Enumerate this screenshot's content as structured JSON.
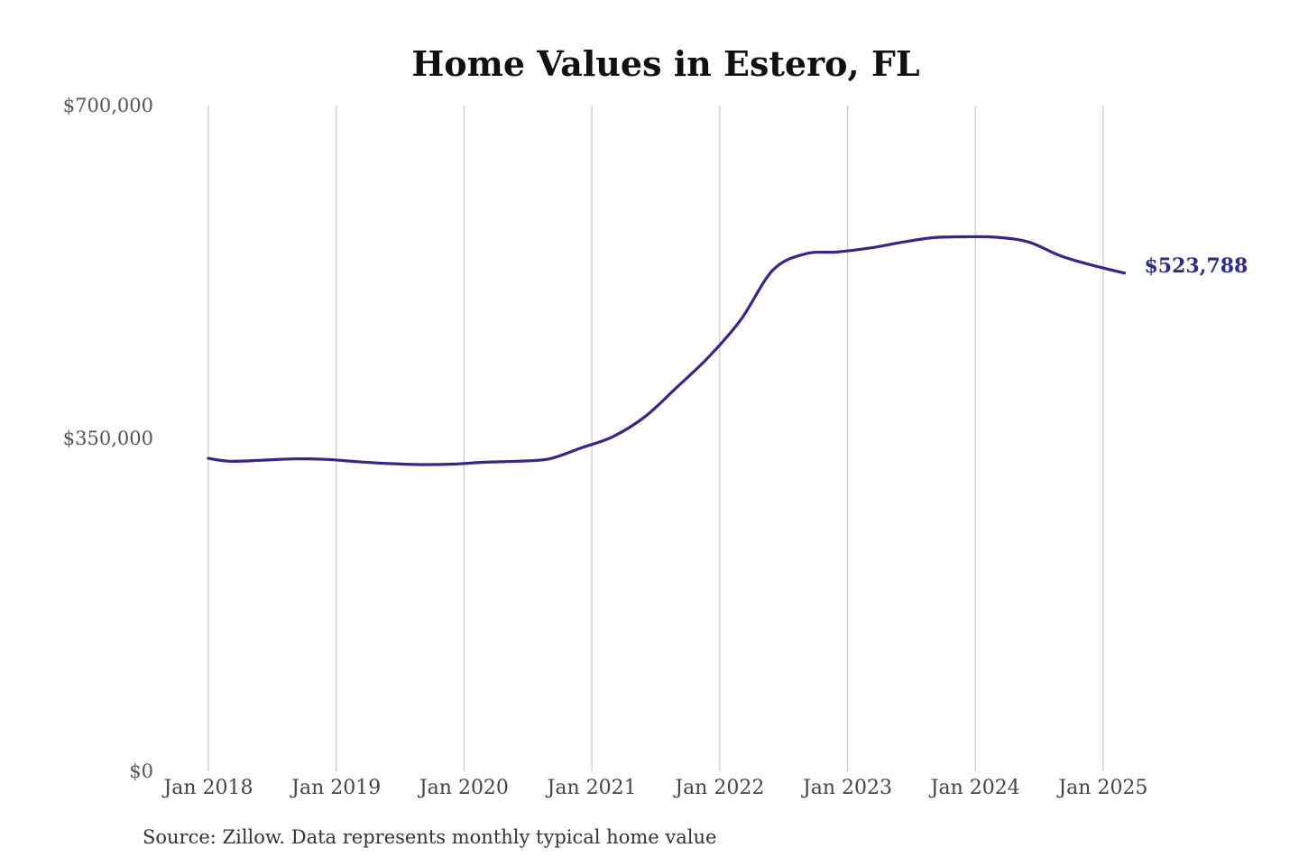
{
  "chart_data": {
    "type": "line",
    "title": "Home Values in Estero, FL",
    "xlabel": "",
    "ylabel": "",
    "ylim": [
      0,
      700000
    ],
    "xlim": [
      "2018-01",
      "2025-12"
    ],
    "y_ticks": [
      {
        "value": 0,
        "label": "$0"
      },
      {
        "value": 350000,
        "label": "$350,000"
      },
      {
        "value": 700000,
        "label": "$700,000"
      }
    ],
    "x_ticks": [
      {
        "value": "2018-01",
        "label": "Jan 2018"
      },
      {
        "value": "2019-01",
        "label": "Jan 2019"
      },
      {
        "value": "2020-01",
        "label": "Jan 2020"
      },
      {
        "value": "2021-01",
        "label": "Jan 2021"
      },
      {
        "value": "2022-01",
        "label": "Jan 2022"
      },
      {
        "value": "2023-01",
        "label": "Jan 2023"
      },
      {
        "value": "2024-01",
        "label": "Jan 2024"
      },
      {
        "value": "2025-01",
        "label": "Jan 2025"
      }
    ],
    "grid": {
      "vertical": true,
      "horizontal": false
    },
    "line_color": "#2e2a86",
    "end_label": "$523,788",
    "series": [
      {
        "points": [
          {
            "x": "2018-01",
            "y": 329000
          },
          {
            "x": "2018-03",
            "y": 326000
          },
          {
            "x": "2018-06",
            "y": 327000
          },
          {
            "x": "2018-09",
            "y": 328500
          },
          {
            "x": "2018-12",
            "y": 328000
          },
          {
            "x": "2019-03",
            "y": 325500
          },
          {
            "x": "2019-06",
            "y": 323500
          },
          {
            "x": "2019-09",
            "y": 322500
          },
          {
            "x": "2019-12",
            "y": 323000
          },
          {
            "x": "2020-03",
            "y": 325000
          },
          {
            "x": "2020-06",
            "y": 326000
          },
          {
            "x": "2020-09",
            "y": 328500
          },
          {
            "x": "2020-12",
            "y": 340000
          },
          {
            "x": "2021-03",
            "y": 352000
          },
          {
            "x": "2021-06",
            "y": 373000
          },
          {
            "x": "2021-09",
            "y": 404000
          },
          {
            "x": "2021-12",
            "y": 436000
          },
          {
            "x": "2022-03",
            "y": 475000
          },
          {
            "x": "2022-06",
            "y": 527000
          },
          {
            "x": "2022-09",
            "y": 544000
          },
          {
            "x": "2022-12",
            "y": 546000
          },
          {
            "x": "2023-03",
            "y": 550000
          },
          {
            "x": "2023-06",
            "y": 556000
          },
          {
            "x": "2023-09",
            "y": 561000
          },
          {
            "x": "2023-12",
            "y": 562000
          },
          {
            "x": "2024-03",
            "y": 561500
          },
          {
            "x": "2024-06",
            "y": 556500
          },
          {
            "x": "2024-09",
            "y": 542000
          },
          {
            "x": "2024-12",
            "y": 532000
          },
          {
            "x": "2025-03",
            "y": 523788
          }
        ]
      }
    ]
  },
  "footer": {
    "source_text": "Source: Zillow. Data represents monthly typical home value"
  }
}
